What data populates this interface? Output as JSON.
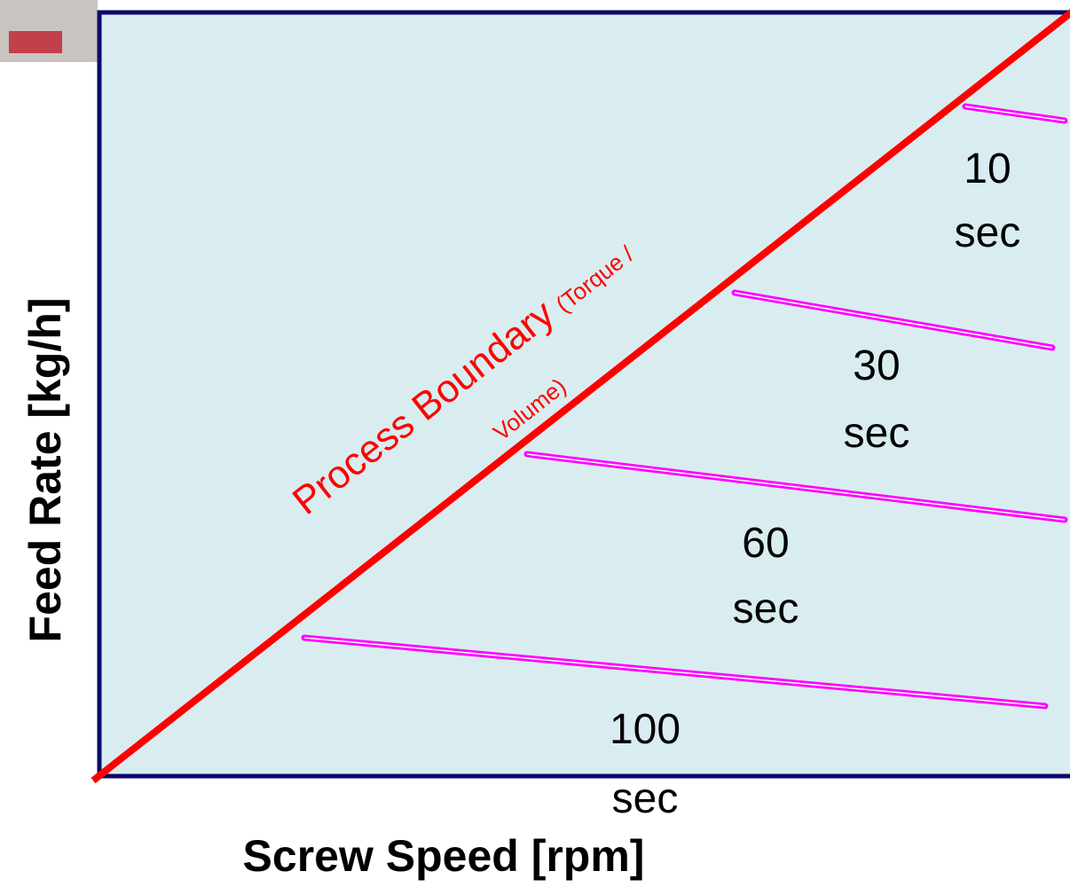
{
  "y_axis_label": "Feed Rate [kg/h]",
  "x_axis_label": "Screw Speed [rpm]",
  "boundary": {
    "label": "Process Boundary",
    "note_line1": "(Torque /",
    "note_line2": "Volume)"
  },
  "curves": [
    {
      "value": "10",
      "unit": "sec"
    },
    {
      "value": "30",
      "unit": "sec"
    },
    {
      "value": "60",
      "unit": "sec"
    },
    {
      "value": "100",
      "unit": "sec"
    }
  ]
}
